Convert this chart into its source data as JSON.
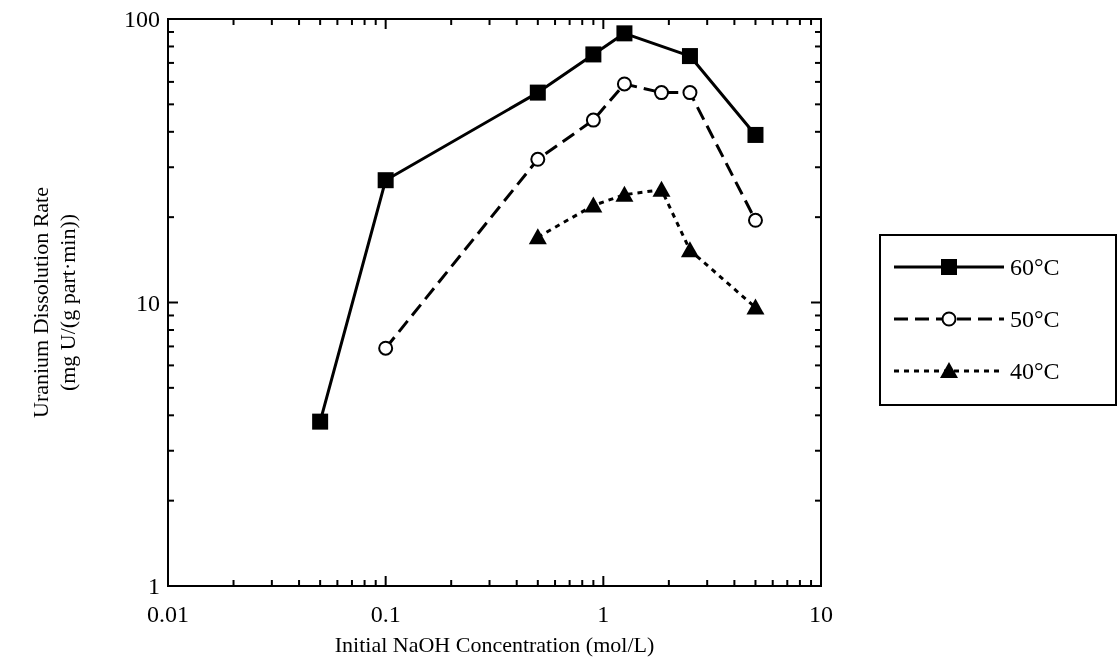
{
  "chart_data": {
    "type": "line",
    "xlabel": "Initial NaOH Concentration (mol/L)",
    "ylabel": "Uranium Dissolution Rate\n(mg U/(g part·min))",
    "log": "xy",
    "grid": false,
    "legend": "right",
    "xlim": [
      0.01,
      10
    ],
    "ylim": [
      1,
      100
    ],
    "xticks": [
      0.01,
      {
        "value": 0.02,
        "label": null
      },
      {
        "value": 0.03,
        "label": null
      },
      {
        "value": 0.04,
        "label": null
      },
      {
        "value": 0.05,
        "label": null
      },
      {
        "value": 0.06,
        "label": null
      },
      {
        "value": 0.07,
        "label": null
      },
      {
        "value": 0.08,
        "label": null
      },
      {
        "value": 0.09,
        "label": null
      },
      0.1,
      {
        "value": 0.2,
        "label": null
      },
      {
        "value": 0.3,
        "label": null
      },
      {
        "value": 0.4,
        "label": null
      },
      {
        "value": 0.5,
        "label": null
      },
      {
        "value": 0.6,
        "label": null
      },
      {
        "value": 0.7,
        "label": null
      },
      {
        "value": 0.8,
        "label": null
      },
      {
        "value": 0.9,
        "label": null
      },
      1,
      {
        "value": 2,
        "label": null
      },
      {
        "value": 3,
        "label": null
      },
      {
        "value": 4,
        "label": null
      },
      {
        "value": 5,
        "label": null
      },
      {
        "value": 6,
        "label": null
      },
      {
        "value": 7,
        "label": null
      },
      {
        "value": 8,
        "label": null
      },
      {
        "value": 9,
        "label": null
      },
      10
    ],
    "yticks": [
      1,
      {
        "value": 2,
        "label": null
      },
      {
        "value": 3,
        "label": null
      },
      {
        "value": 4,
        "label": null
      },
      {
        "value": 5,
        "label": null
      },
      {
        "value": 6,
        "label": null
      },
      {
        "value": 7,
        "label": null
      },
      {
        "value": 8,
        "label": null
      },
      {
        "value": 9,
        "label": null
      },
      10,
      {
        "value": 20,
        "label": null
      },
      {
        "value": 30,
        "label": null
      },
      {
        "value": 40,
        "label": null
      },
      {
        "value": 50,
        "label": null
      },
      {
        "value": 60,
        "label": null
      },
      {
        "value": 70,
        "label": null
      },
      {
        "value": 80,
        "label": null
      },
      {
        "value": 90,
        "label": null
      },
      100
    ],
    "series": [
      {
        "name": "60°C",
        "color": "#000000",
        "marker": "square",
        "line_style": "solid",
        "x": [
          0.05,
          0.1,
          0.5,
          0.9,
          1.25,
          2.5,
          5
        ],
        "values": [
          3.8,
          27,
          55,
          75,
          89,
          74,
          39
        ]
      },
      {
        "name": "50°C",
        "color": "#000000",
        "marker": "circle",
        "line_style": "dashed",
        "x": [
          0.1,
          0.5,
          0.9,
          1.25,
          1.85,
          2.5,
          5
        ],
        "values": [
          6.9,
          32,
          44,
          59,
          55,
          55,
          19.5
        ]
      },
      {
        "name": "40°C",
        "color": "#000000",
        "marker": "triangle",
        "line_style": "dotted",
        "x": [
          0.5,
          0.9,
          1.25,
          1.85,
          2.5,
          5
        ],
        "values": [
          17,
          22,
          24,
          25,
          15.3,
          9.6
        ]
      }
    ]
  }
}
